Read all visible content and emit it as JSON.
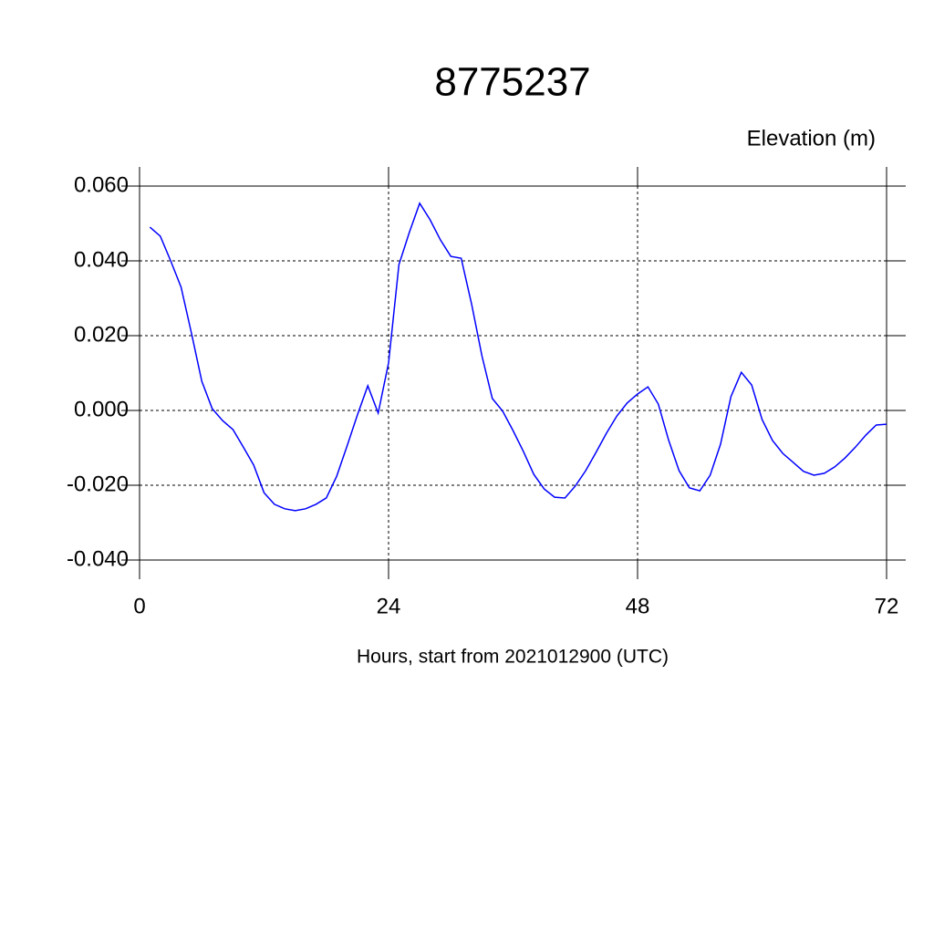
{
  "chart_data": {
    "type": "line",
    "title": "8775237",
    "ylabel": "Elevation (m)",
    "xlabel": "Hours, start from 2021012900 (UTC)",
    "x": [
      1,
      2,
      3,
      4,
      5,
      6,
      7,
      8,
      9,
      10,
      11,
      12,
      13,
      14,
      15,
      16,
      17,
      18,
      19,
      20,
      21,
      22,
      23,
      24,
      25,
      26,
      27,
      28,
      29,
      30,
      31,
      32,
      33,
      34,
      35,
      36,
      37,
      38,
      39,
      40,
      41,
      42,
      43,
      44,
      45,
      46,
      47,
      48,
      49,
      50,
      51,
      52,
      53,
      54,
      55,
      56,
      57,
      58,
      59,
      60,
      61,
      62,
      63,
      64,
      65,
      66,
      67,
      68,
      69,
      70,
      71,
      72
    ],
    "series": [
      {
        "color": "#0000ff",
        "values": [
          0.049,
          0.0466,
          0.04,
          0.033,
          0.0207,
          0.0078,
          0.0005,
          -0.0027,
          -0.0051,
          -0.0098,
          -0.0146,
          -0.022,
          -0.0251,
          -0.0263,
          -0.0268,
          -0.0263,
          -0.0251,
          -0.0234,
          -0.0176,
          -0.0095,
          -0.0012,
          0.0066,
          -0.0007,
          0.0127,
          0.039,
          0.0476,
          0.0554,
          0.051,
          0.0456,
          0.0412,
          0.0407,
          0.0285,
          0.0146,
          0.0032,
          -0.0002,
          -0.0054,
          -0.011,
          -0.0171,
          -0.021,
          -0.0232,
          -0.0234,
          -0.0202,
          -0.0161,
          -0.0112,
          -0.0061,
          -0.0015,
          0.002,
          0.0044,
          0.0063,
          0.0017,
          -0.008,
          -0.0161,
          -0.0207,
          -0.0215,
          -0.0173,
          -0.009,
          0.0037,
          0.0102,
          0.0068,
          -0.0024,
          -0.008,
          -0.0115,
          -0.0139,
          -0.0163,
          -0.0173,
          -0.0168,
          -0.0151,
          -0.0127,
          -0.0098,
          -0.0066,
          -0.0039,
          -0.0037
        ]
      }
    ],
    "xlim": [
      0,
      72
    ],
    "xticks": [
      0,
      24,
      48,
      72
    ],
    "ylim": [
      -0.04,
      0.06
    ],
    "yticks": [
      {
        "value": -0.04,
        "label": "-0.040"
      },
      {
        "value": -0.02,
        "label": "-0.020"
      },
      {
        "value": 0,
        "label": "0.000"
      },
      {
        "value": 0.02,
        "label": "0.020"
      },
      {
        "value": 0.04,
        "label": "0.040"
      },
      {
        "value": 0.06,
        "label": "0.060"
      }
    ],
    "grid": true
  }
}
